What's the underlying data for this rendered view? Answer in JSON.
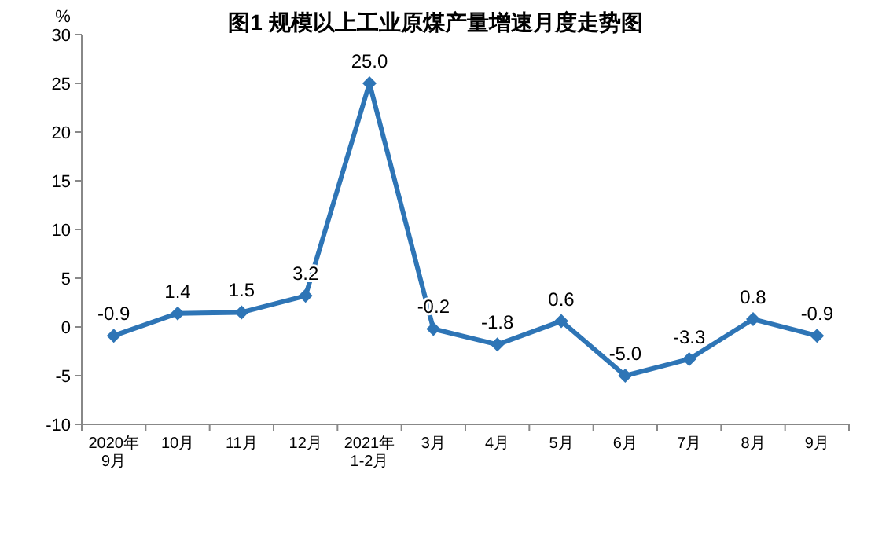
{
  "chart_data": {
    "type": "line",
    "title": "图1  规模以上工业原煤产量增速月度走势图",
    "ylabel": "%",
    "categories": [
      "2020年\n9月",
      "10月",
      "11月",
      "12月",
      "2021年\n1-2月",
      "3月",
      "4月",
      "5月",
      "6月",
      "7月",
      "8月",
      "9月"
    ],
    "series": [
      {
        "color": "#2e75b6",
        "values": [
          -0.9,
          1.4,
          1.5,
          3.2,
          25.0,
          -0.2,
          -1.8,
          0.6,
          -5.0,
          -3.3,
          0.8,
          -0.9
        ],
        "value_labels": [
          "-0.9",
          "1.4",
          "1.5",
          "3.2",
          "25.0",
          "-0.2",
          "-1.8",
          "0.6",
          "-5.0",
          "-3.3",
          "0.8",
          "-0.9"
        ]
      }
    ],
    "ylim": [
      -10,
      30
    ],
    "yticks": [
      -10,
      -5,
      0,
      5,
      10,
      15,
      20,
      25,
      30
    ],
    "marker": "diamond",
    "line_style": "solid"
  }
}
